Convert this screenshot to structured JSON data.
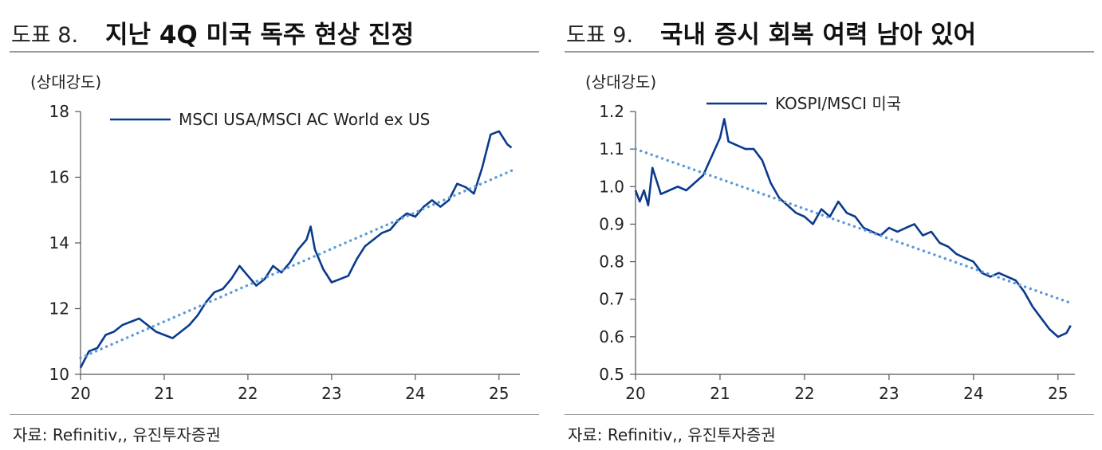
{
  "left": {
    "fig_label": "도표 8.",
    "title": "지난 4Q 미국 독주 현상 진정",
    "source": "자료: Refinitiv,, 유진투자증권",
    "chart_data": {
      "type": "line",
      "unit": "(상대강도)",
      "ylabel": "(상대강도)",
      "legend_position": "top",
      "xlim": [
        20,
        25.25
      ],
      "ylim": [
        10,
        18
      ],
      "yticks": [
        "10",
        "12",
        "14",
        "16",
        "18"
      ],
      "xticks": [
        "20",
        "21",
        "22",
        "23",
        "24",
        "25"
      ],
      "series": [
        {
          "name": "MSCI USA/MSCI AC World ex US",
          "color": "#0a3a8c",
          "x": [
            20.0,
            20.1,
            20.2,
            20.3,
            20.4,
            20.5,
            20.6,
            20.7,
            20.8,
            20.9,
            21.0,
            21.1,
            21.2,
            21.3,
            21.4,
            21.5,
            21.6,
            21.7,
            21.8,
            21.9,
            22.0,
            22.1,
            22.2,
            22.3,
            22.4,
            22.5,
            22.6,
            22.7,
            22.75,
            22.8,
            22.9,
            23.0,
            23.1,
            23.2,
            23.3,
            23.4,
            23.5,
            23.6,
            23.7,
            23.8,
            23.9,
            24.0,
            24.1,
            24.2,
            24.3,
            24.4,
            24.5,
            24.6,
            24.7,
            24.8,
            24.9,
            25.0,
            25.1,
            25.15
          ],
          "values": [
            10.2,
            10.7,
            10.8,
            11.2,
            11.3,
            11.5,
            11.6,
            11.7,
            11.5,
            11.3,
            11.2,
            11.1,
            11.3,
            11.5,
            11.8,
            12.2,
            12.5,
            12.6,
            12.9,
            13.3,
            13.0,
            12.7,
            12.9,
            13.3,
            13.1,
            13.4,
            13.8,
            14.1,
            14.5,
            13.8,
            13.2,
            12.8,
            12.9,
            13.0,
            13.5,
            13.9,
            14.1,
            14.3,
            14.4,
            14.7,
            14.9,
            14.8,
            15.1,
            15.3,
            15.1,
            15.3,
            15.8,
            15.7,
            15.5,
            16.3,
            17.3,
            17.4,
            17.0,
            16.9
          ]
        },
        {
          "name": "",
          "style": "dotted-trend",
          "color": "#5a9ad8",
          "x": [
            20.0,
            25.15
          ],
          "values": [
            10.5,
            16.2
          ]
        }
      ]
    }
  },
  "right": {
    "fig_label": "도표 9.",
    "title": "국내 증시 회복 여력 남아 있어",
    "source": "자료: Refinitiv,, 유진투자증권",
    "chart_data": {
      "type": "line",
      "unit": "(상대강도)",
      "ylabel": "(상대강도)",
      "legend_position": "top",
      "xlim": [
        20,
        25.2
      ],
      "ylim": [
        0.5,
        1.2
      ],
      "yticks": [
        "0.5",
        "0.6",
        "0.7",
        "0.8",
        "0.9",
        "1.0",
        "1.1",
        "1.2"
      ],
      "xticks": [
        "20",
        "21",
        "22",
        "23",
        "24",
        "25"
      ],
      "series": [
        {
          "name": "KOSPI/MSCI 미국",
          "color": "#0a3a8c",
          "x": [
            20.0,
            20.05,
            20.1,
            20.15,
            20.2,
            20.3,
            20.4,
            20.5,
            20.6,
            20.7,
            20.8,
            20.9,
            21.0,
            21.05,
            21.1,
            21.2,
            21.3,
            21.4,
            21.5,
            21.6,
            21.7,
            21.8,
            21.9,
            22.0,
            22.1,
            22.2,
            22.3,
            22.4,
            22.5,
            22.6,
            22.7,
            22.8,
            22.9,
            23.0,
            23.1,
            23.2,
            23.3,
            23.4,
            23.5,
            23.6,
            23.7,
            23.8,
            23.9,
            24.0,
            24.1,
            24.2,
            24.3,
            24.4,
            24.5,
            24.6,
            24.7,
            24.8,
            24.9,
            25.0,
            25.1,
            25.15
          ],
          "values": [
            0.99,
            0.96,
            0.99,
            0.95,
            1.05,
            0.98,
            0.99,
            1.0,
            0.99,
            1.01,
            1.03,
            1.08,
            1.13,
            1.18,
            1.12,
            1.11,
            1.1,
            1.1,
            1.07,
            1.01,
            0.97,
            0.95,
            0.93,
            0.92,
            0.9,
            0.94,
            0.92,
            0.96,
            0.93,
            0.92,
            0.89,
            0.88,
            0.87,
            0.89,
            0.88,
            0.89,
            0.9,
            0.87,
            0.88,
            0.85,
            0.84,
            0.82,
            0.81,
            0.8,
            0.77,
            0.76,
            0.77,
            0.76,
            0.75,
            0.72,
            0.68,
            0.65,
            0.62,
            0.6,
            0.61,
            0.63
          ]
        },
        {
          "name": "",
          "style": "dotted-trend",
          "color": "#5a9ad8",
          "x": [
            20.0,
            25.15
          ],
          "values": [
            1.1,
            0.69
          ]
        }
      ]
    }
  }
}
